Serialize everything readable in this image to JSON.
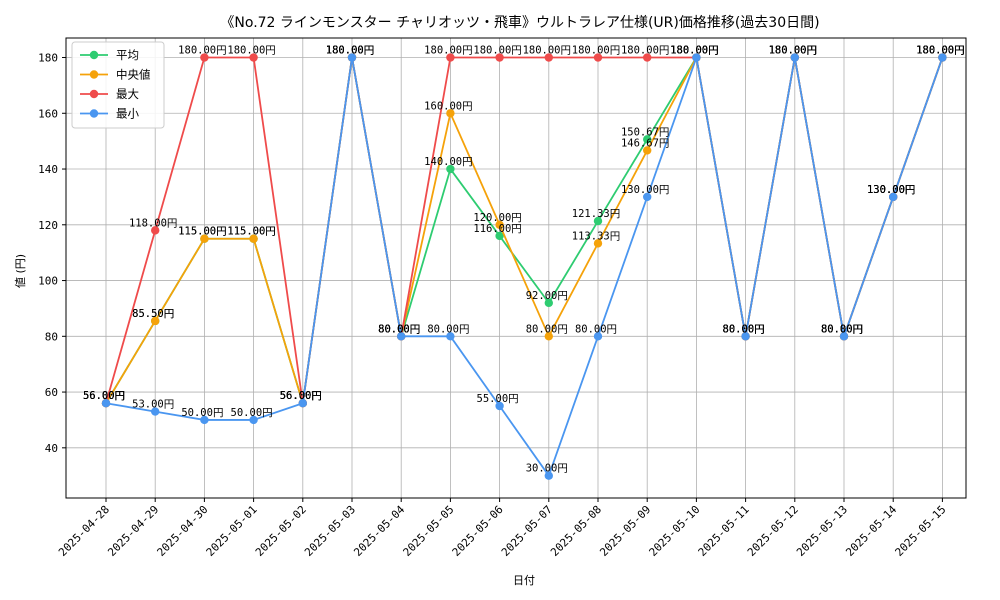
{
  "chart_data": {
    "type": "line",
    "title": "《No.72 ラインモンスター チャリオッツ・飛車》ウルトラレア仕様(UR)価格推移(過去30日間)",
    "xlabel": "日付",
    "ylabel": "値 (円)",
    "ylim": [
      22,
      187
    ],
    "yticks": [
      40,
      60,
      80,
      100,
      120,
      140,
      160,
      180
    ],
    "grid": true,
    "legend_position": "top-left",
    "label_suffix": "円",
    "x": [
      "2025-04-28",
      "2025-04-29",
      "2025-04-30",
      "2025-05-01",
      "2025-05-02",
      "2025-05-03",
      "2025-05-04",
      "2025-05-05",
      "2025-05-06",
      "2025-05-07",
      "2025-05-08",
      "2025-05-09",
      "2025-05-10",
      "2025-05-11",
      "2025-05-12",
      "2025-05-13",
      "2025-05-14",
      "2025-05-15"
    ],
    "series": [
      {
        "name": "平均",
        "color": "#2ecc71",
        "values": [
          56,
          85.5,
          115,
          115,
          56,
          180,
          80,
          140,
          116,
          92,
          121.33,
          150.67,
          180,
          80,
          180,
          80,
          130,
          180
        ]
      },
      {
        "name": "中央値",
        "color": "#f5a20a",
        "values": [
          56,
          85.5,
          115,
          115,
          56,
          180,
          80,
          160,
          120,
          80,
          113.33,
          146.67,
          180,
          80,
          180,
          80,
          130,
          180
        ]
      },
      {
        "name": "最大",
        "color": "#ef4b4b",
        "values": [
          56,
          118,
          180,
          180,
          56,
          180,
          80,
          180,
          180,
          180,
          180,
          180,
          180,
          80,
          180,
          80,
          130,
          180
        ]
      },
      {
        "name": "最小",
        "color": "#4a96f0",
        "values": [
          56,
          53,
          50,
          50,
          56,
          180,
          80,
          80,
          55,
          30,
          80,
          130,
          180,
          80,
          180,
          80,
          130,
          180
        ]
      }
    ]
  }
}
